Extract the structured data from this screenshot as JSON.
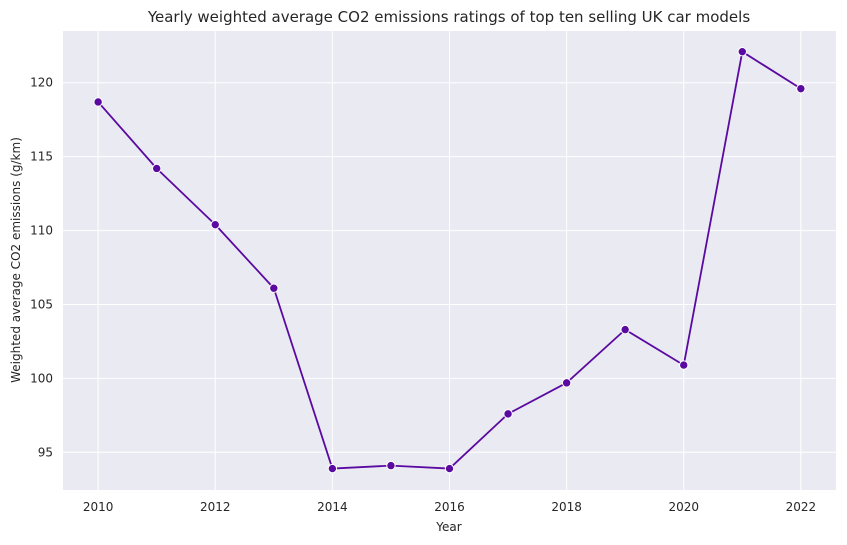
{
  "chart_data": {
    "type": "line",
    "title": "Yearly weighted average CO2 emissions ratings of top ten selling UK car models",
    "xlabel": "Year",
    "ylabel": "Weighted average CO2 emissions (g/km)",
    "x": [
      2010,
      2011,
      2012,
      2013,
      2014,
      2015,
      2016,
      2017,
      2018,
      2019,
      2020,
      2021,
      2022
    ],
    "series": [
      {
        "values": [
          118.7,
          114.2,
          110.4,
          106.1,
          93.9,
          94.1,
          93.9,
          97.6,
          99.7,
          103.3,
          100.9,
          122.1,
          119.6
        ]
      }
    ],
    "xlim": [
      2009.4,
      2022.6
    ],
    "ylim": [
      92.45,
      123.5
    ],
    "xticks": [
      "2010",
      "2012",
      "2014",
      "2016",
      "2018",
      "2020",
      "2022"
    ],
    "yticks": [
      "95",
      "100",
      "105",
      "110",
      "115",
      "120"
    ],
    "grid": true,
    "colors": {
      "line": "#5a0aa0",
      "plot_background": "#eaeaf2",
      "grid": "#ffffff"
    }
  }
}
